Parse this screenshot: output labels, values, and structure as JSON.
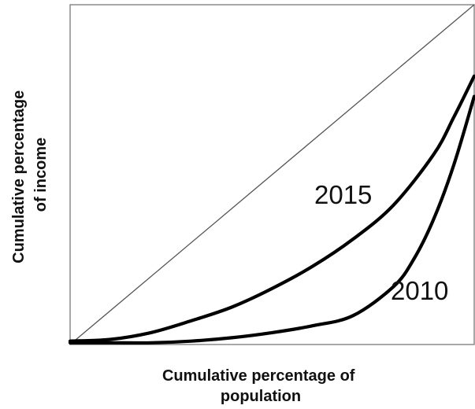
{
  "chart_data": {
    "type": "line",
    "title": "",
    "xlabel_lines": [
      "Cumulative percentage of",
      "population"
    ],
    "ylabel_lines": [
      "Cumulative percentage",
      "of income"
    ],
    "xlim": [
      0,
      100
    ],
    "ylim": [
      0,
      100
    ],
    "grid": false,
    "legend": "none",
    "equality_line": {
      "x": [
        0,
        100
      ],
      "y": [
        0,
        100
      ],
      "color": "#555555"
    },
    "series": [
      {
        "name": "2015",
        "color": "#000000",
        "x": [
          0,
          10,
          20,
          30,
          40,
          50,
          60,
          70,
          80,
          90,
          95,
          100
        ],
        "y": [
          1,
          1.5,
          3.5,
          7,
          11,
          16.5,
          23,
          31,
          41,
          56,
          67,
          79
        ]
      },
      {
        "name": "2010",
        "color": "#000000",
        "x": [
          0,
          10,
          20,
          30,
          40,
          50,
          60,
          70,
          80,
          85,
          90,
          95,
          100
        ],
        "y": [
          0.5,
          0.5,
          0.5,
          1,
          2,
          3.5,
          5.5,
          8.5,
          17,
          25,
          37,
          53,
          73
        ]
      }
    ]
  }
}
